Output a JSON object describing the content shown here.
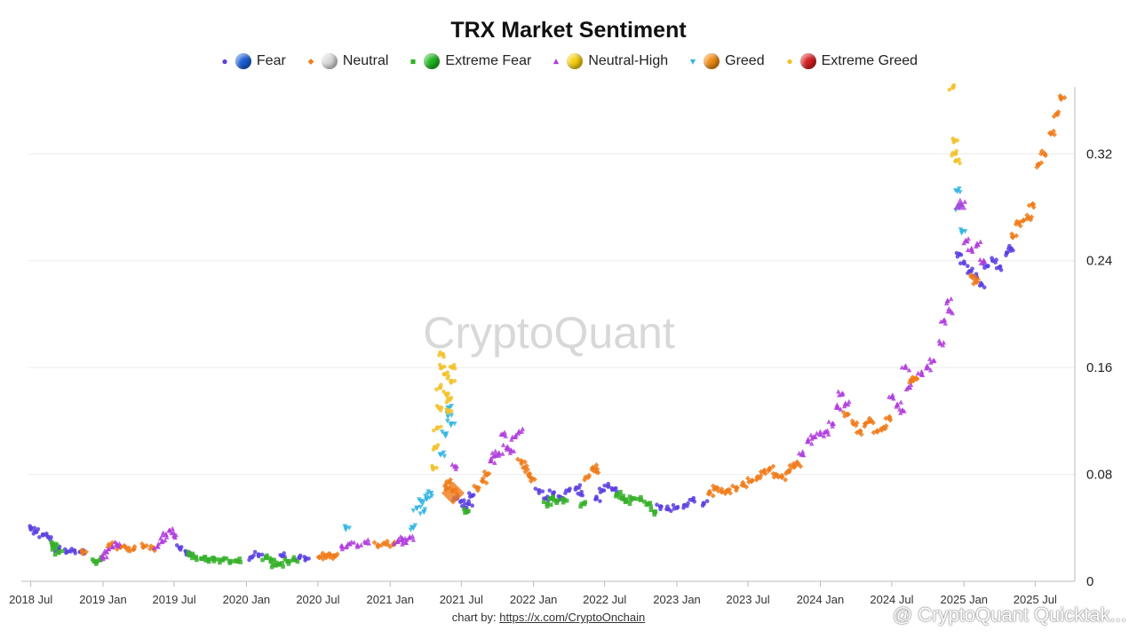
{
  "chart_data": {
    "type": "scatter",
    "title": "TRX Market Sentiment",
    "xlabel": "",
    "ylabel": "",
    "xlim": [
      "2018-06-25",
      "2025-10-10"
    ],
    "ylim": [
      0,
      0.37
    ],
    "y_ticks": [
      0,
      0.08,
      0.16,
      0.24,
      0.32
    ],
    "y_tick_labels": [
      "0",
      "0.08",
      "0.16",
      "0.24",
      "0.32"
    ],
    "x_ticks": [
      "2018-07-01",
      "2019-01-01",
      "2019-07-01",
      "2020-01-01",
      "2020-07-01",
      "2021-01-01",
      "2021-07-01",
      "2022-01-01",
      "2022-07-01",
      "2023-01-01",
      "2023-07-01",
      "2024-01-01",
      "2024-07-01",
      "2025-01-01",
      "2025-07-01"
    ],
    "x_tick_labels": [
      "2018 Jul",
      "2019 Jan",
      "2019 Jul",
      "2020 Jan",
      "2020 Jul",
      "2021 Jan",
      "2021 Jul",
      "2022 Jan",
      "2022 Jul",
      "2023 Jan",
      "2023 Jul",
      "2024 Jan",
      "2024 Jul",
      "2025 Jan",
      "2025 Jul"
    ],
    "grid": "horizontal",
    "y_axis_position": "right",
    "legend_position": "top",
    "series": [
      {
        "name": "Fear",
        "marker": "circle",
        "color": "#5a3fe0",
        "points": [
          [
            "2018-07-01",
            0.04
          ],
          [
            "2018-07-15",
            0.037
          ],
          [
            "2018-08-01",
            0.035
          ],
          [
            "2018-08-15",
            0.033
          ],
          [
            "2018-09-10",
            0.024
          ],
          [
            "2018-10-01",
            0.022
          ],
          [
            "2018-10-20",
            0.023
          ],
          [
            "2018-11-05",
            0.022
          ],
          [
            "2019-07-15",
            0.025
          ],
          [
            "2019-08-01",
            0.022
          ],
          [
            "2020-01-15",
            0.018
          ],
          [
            "2020-02-01",
            0.02
          ],
          [
            "2020-04-01",
            0.019
          ],
          [
            "2020-05-15",
            0.018
          ],
          [
            "2020-06-01",
            0.017
          ],
          [
            "2021-06-20",
            0.062
          ],
          [
            "2021-07-01",
            0.06
          ],
          [
            "2021-07-10",
            0.055
          ],
          [
            "2021-07-20",
            0.058
          ],
          [
            "2021-07-28",
            0.064
          ],
          [
            "2022-01-15",
            0.068
          ],
          [
            "2022-02-01",
            0.062
          ],
          [
            "2022-02-20",
            0.066
          ],
          [
            "2022-03-10",
            0.063
          ],
          [
            "2022-04-01",
            0.068
          ],
          [
            "2022-04-20",
            0.07
          ],
          [
            "2022-05-01",
            0.065
          ],
          [
            "2022-06-10",
            0.062
          ],
          [
            "2022-06-25",
            0.068
          ],
          [
            "2022-07-10",
            0.071
          ],
          [
            "2022-07-25",
            0.069
          ],
          [
            "2022-11-20",
            0.056
          ],
          [
            "2022-12-10",
            0.054
          ],
          [
            "2023-01-01",
            0.055
          ],
          [
            "2023-01-20",
            0.057
          ],
          [
            "2023-02-10",
            0.061
          ],
          [
            "2023-03-10",
            0.058
          ],
          [
            "2024-12-20",
            0.245
          ],
          [
            "2025-01-01",
            0.238
          ],
          [
            "2025-01-15",
            0.232
          ],
          [
            "2025-02-01",
            0.228
          ],
          [
            "2025-02-15",
            0.222
          ],
          [
            "2025-03-01",
            0.236
          ],
          [
            "2025-03-15",
            0.24
          ],
          [
            "2025-04-01",
            0.235
          ],
          [
            "2025-04-20",
            0.246
          ],
          [
            "2025-05-01",
            0.249
          ]
        ]
      },
      {
        "name": "Neutral",
        "marker": "diamond",
        "color": "#f07b1a",
        "points": [
          [
            "2018-11-10",
            0.022
          ],
          [
            "2019-01-20",
            0.027
          ],
          [
            "2019-02-15",
            0.026
          ],
          [
            "2019-03-01",
            0.025
          ],
          [
            "2019-03-20",
            0.024
          ],
          [
            "2019-04-15",
            0.026
          ],
          [
            "2019-05-10",
            0.025
          ],
          [
            "2020-07-05",
            0.018
          ],
          [
            "2020-07-20",
            0.019
          ],
          [
            "2020-08-01",
            0.02
          ],
          [
            "2020-08-15",
            0.019
          ],
          [
            "2020-12-01",
            0.027
          ],
          [
            "2020-12-20",
            0.028
          ],
          [
            "2021-01-10",
            0.028
          ],
          [
            "2021-05-25",
            0.07
          ],
          [
            "2021-06-01",
            0.074
          ],
          [
            "2021-06-10",
            0.068
          ],
          [
            "2021-08-10",
            0.07
          ],
          [
            "2021-08-25",
            0.075
          ],
          [
            "2021-09-05",
            0.08
          ],
          [
            "2021-12-01",
            0.09
          ],
          [
            "2021-12-10",
            0.085
          ],
          [
            "2021-12-20",
            0.08
          ],
          [
            "2021-12-28",
            0.077
          ],
          [
            "2022-05-20",
            0.078
          ],
          [
            "2022-06-01",
            0.085
          ],
          [
            "2022-06-10",
            0.082
          ],
          [
            "2023-03-25",
            0.066
          ],
          [
            "2023-04-10",
            0.07
          ],
          [
            "2023-04-25",
            0.067
          ],
          [
            "2023-05-10",
            0.068
          ],
          [
            "2023-06-01",
            0.07
          ],
          [
            "2023-06-20",
            0.072
          ],
          [
            "2023-07-10",
            0.075
          ],
          [
            "2023-07-25",
            0.078
          ],
          [
            "2023-08-10",
            0.082
          ],
          [
            "2023-08-25",
            0.084
          ],
          [
            "2023-09-10",
            0.08
          ],
          [
            "2023-09-25",
            0.078
          ],
          [
            "2023-10-10",
            0.082
          ],
          [
            "2023-10-25",
            0.086
          ],
          [
            "2023-11-05",
            0.088
          ],
          [
            "2024-03-10",
            0.125
          ],
          [
            "2024-03-25",
            0.118
          ],
          [
            "2024-04-10",
            0.112
          ],
          [
            "2024-04-25",
            0.118
          ],
          [
            "2024-05-10",
            0.12
          ],
          [
            "2024-05-25",
            0.112
          ],
          [
            "2024-06-10",
            0.115
          ],
          [
            "2024-06-25",
            0.122
          ],
          [
            "2024-08-20",
            0.15
          ],
          [
            "2024-09-01",
            0.152
          ],
          [
            "2025-01-20",
            0.228
          ],
          [
            "2025-02-01",
            0.224
          ],
          [
            "2025-05-05",
            0.258
          ],
          [
            "2025-05-20",
            0.268
          ],
          [
            "2025-06-01",
            0.27
          ],
          [
            "2025-06-15",
            0.272
          ],
          [
            "2025-06-25",
            0.282
          ],
          [
            "2025-07-10",
            0.312
          ],
          [
            "2025-07-25",
            0.32
          ],
          [
            "2025-08-10",
            0.335
          ],
          [
            "2025-08-25",
            0.35
          ],
          [
            "2025-09-05",
            0.362
          ]
        ]
      },
      {
        "name": "Extreme Fear",
        "marker": "square",
        "color": "#36b02a",
        "points": [
          [
            "2018-08-25",
            0.028
          ],
          [
            "2018-09-01",
            0.025
          ],
          [
            "2018-09-10",
            0.022
          ],
          [
            "2018-12-10",
            0.015
          ],
          [
            "2018-12-25",
            0.016
          ],
          [
            "2019-08-10",
            0.02
          ],
          [
            "2019-08-25",
            0.018
          ],
          [
            "2019-09-10",
            0.017
          ],
          [
            "2019-09-25",
            0.016
          ],
          [
            "2019-10-10",
            0.017
          ],
          [
            "2019-11-01",
            0.016
          ],
          [
            "2019-11-20",
            0.015
          ],
          [
            "2019-12-10",
            0.015
          ],
          [
            "2020-02-20",
            0.018
          ],
          [
            "2020-03-05",
            0.016
          ],
          [
            "2020-03-15",
            0.012
          ],
          [
            "2020-03-25",
            0.013
          ],
          [
            "2020-04-15",
            0.015
          ],
          [
            "2020-05-01",
            0.016
          ],
          [
            "2021-07-15",
            0.052
          ],
          [
            "2022-02-05",
            0.058
          ],
          [
            "2022-02-15",
            0.062
          ],
          [
            "2022-03-01",
            0.06
          ],
          [
            "2022-03-20",
            0.061
          ],
          [
            "2022-05-10",
            0.058
          ],
          [
            "2022-08-01",
            0.065
          ],
          [
            "2022-08-15",
            0.062
          ],
          [
            "2022-08-25",
            0.06
          ],
          [
            "2022-09-10",
            0.062
          ],
          [
            "2022-10-01",
            0.061
          ],
          [
            "2022-10-20",
            0.058
          ],
          [
            "2022-11-05",
            0.052
          ]
        ]
      },
      {
        "name": "Neutral-High",
        "marker": "triangle",
        "color": "#b03cdc",
        "points": [
          [
            "2019-01-01",
            0.018
          ],
          [
            "2019-01-10",
            0.022
          ],
          [
            "2019-01-25",
            0.026
          ],
          [
            "2019-02-05",
            0.028
          ],
          [
            "2019-05-20",
            0.026
          ],
          [
            "2019-06-01",
            0.03
          ],
          [
            "2019-06-10",
            0.035
          ],
          [
            "2019-06-20",
            0.038
          ],
          [
            "2019-07-01",
            0.034
          ],
          [
            "2020-09-01",
            0.026
          ],
          [
            "2020-09-20",
            0.028
          ],
          [
            "2020-10-10",
            0.027
          ],
          [
            "2020-11-01",
            0.029
          ],
          [
            "2021-01-20",
            0.03
          ],
          [
            "2021-02-01",
            0.032
          ],
          [
            "2021-02-10",
            0.029
          ],
          [
            "2021-02-20",
            0.033
          ],
          [
            "2021-06-15",
            0.086
          ],
          [
            "2021-09-15",
            0.09
          ],
          [
            "2021-09-25",
            0.094
          ],
          [
            "2021-10-05",
            0.096
          ],
          [
            "2021-10-15",
            0.11
          ],
          [
            "2021-10-25",
            0.1
          ],
          [
            "2021-11-05",
            0.098
          ],
          [
            "2021-11-15",
            0.108
          ],
          [
            "2021-11-25",
            0.112
          ],
          [
            "2023-11-15",
            0.095
          ],
          [
            "2023-12-01",
            0.105
          ],
          [
            "2023-12-15",
            0.108
          ],
          [
            "2024-01-01",
            0.11
          ],
          [
            "2024-01-15",
            0.112
          ],
          [
            "2024-02-01",
            0.118
          ],
          [
            "2024-02-15",
            0.13
          ],
          [
            "2024-02-25",
            0.14
          ],
          [
            "2024-03-05",
            0.133
          ],
          [
            "2024-07-01",
            0.138
          ],
          [
            "2024-07-15",
            0.132
          ],
          [
            "2024-07-28",
            0.128
          ],
          [
            "2024-08-05",
            0.16
          ],
          [
            "2024-08-12",
            0.145
          ],
          [
            "2024-09-15",
            0.155
          ],
          [
            "2024-10-01",
            0.16
          ],
          [
            "2024-10-15",
            0.165
          ],
          [
            "2024-11-01",
            0.178
          ],
          [
            "2024-11-10",
            0.195
          ],
          [
            "2024-11-20",
            0.21
          ],
          [
            "2024-11-28",
            0.202
          ],
          [
            "2024-12-25",
            0.282
          ],
          [
            "2025-01-05",
            0.255
          ],
          [
            "2025-01-20",
            0.248
          ],
          [
            "2025-02-05",
            0.252
          ],
          [
            "2025-02-20",
            0.24
          ]
        ]
      },
      {
        "name": "Greed",
        "marker": "triangle-down",
        "color": "#33b5e0",
        "points": [
          [
            "2020-09-10",
            0.04
          ],
          [
            "2021-03-01",
            0.04
          ],
          [
            "2021-03-10",
            0.055
          ],
          [
            "2021-03-20",
            0.06
          ],
          [
            "2021-03-28",
            0.052
          ],
          [
            "2021-04-05",
            0.062
          ],
          [
            "2021-04-15",
            0.066
          ],
          [
            "2021-05-10",
            0.095
          ],
          [
            "2021-05-20",
            0.11
          ],
          [
            "2021-05-28",
            0.125
          ],
          [
            "2021-06-01",
            0.13
          ],
          [
            "2021-06-05",
            0.118
          ],
          [
            "2024-12-15",
            0.292
          ],
          [
            "2024-12-20",
            0.28
          ],
          [
            "2024-12-28",
            0.262
          ]
        ]
      },
      {
        "name": "Extreme Greed",
        "marker": "circle",
        "color": "#f2c12a",
        "points": [
          [
            "2021-04-20",
            0.085
          ],
          [
            "2021-04-28",
            0.1
          ],
          [
            "2021-05-01",
            0.115
          ],
          [
            "2021-05-05",
            0.13
          ],
          [
            "2021-05-08",
            0.145
          ],
          [
            "2021-05-12",
            0.16
          ],
          [
            "2021-05-15",
            0.17
          ],
          [
            "2021-05-20",
            0.155
          ],
          [
            "2021-05-24",
            0.14
          ],
          [
            "2021-05-28",
            0.128
          ],
          [
            "2021-06-01",
            0.136
          ],
          [
            "2021-06-05",
            0.15
          ],
          [
            "2021-06-08",
            0.16
          ],
          [
            "2024-12-04",
            0.37
          ],
          [
            "2024-12-08",
            0.33
          ],
          [
            "2024-12-10",
            0.32
          ],
          [
            "2024-12-12",
            0.315
          ]
        ]
      }
    ],
    "highlights": [
      {
        "date": "2021-06-10",
        "value": 0.066,
        "marker": "diamond",
        "color": "#f07b1a"
      },
      {
        "date": "2024-12-22",
        "value": 0.282,
        "marker": "triangle",
        "color": "#b03cdc"
      }
    ],
    "watermark": "CryptoQuant"
  },
  "legend": {
    "entries": [
      {
        "label": "Fear",
        "marker": "circle",
        "marker_color": "#5a3fe0",
        "ball_color": "#1b5fd6"
      },
      {
        "label": "Neutral",
        "marker": "diamond",
        "marker_color": "#f07b1a",
        "ball_color": "#d9d9d9"
      },
      {
        "label": "Extreme Fear",
        "marker": "square",
        "marker_color": "#36b02a",
        "ball_color": "#1fb51f"
      },
      {
        "label": "Neutral-High",
        "marker": "triangle",
        "marker_color": "#b03cdc",
        "ball_color": "#f6cf10"
      },
      {
        "label": "Greed",
        "marker": "triangle-down",
        "marker_color": "#33b5e0",
        "ball_color": "#ef8a14"
      },
      {
        "label": "Extreme Greed",
        "marker": "circle",
        "marker_color": "#f2c12a",
        "ball_color": "#d61f1f"
      }
    ]
  },
  "footer": {
    "credit_prefix": "chart by: ",
    "credit_link": "https://x.com/CryptoOnchain",
    "corner_watermark": "@ CryptoQuant Quicktak..."
  }
}
